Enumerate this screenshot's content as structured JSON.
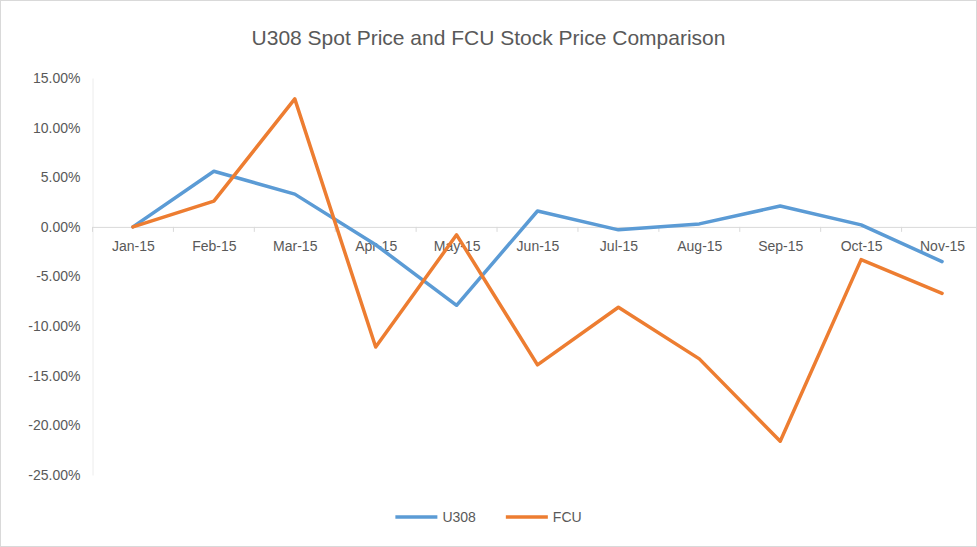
{
  "chart_data": {
    "type": "line",
    "title": "U308 Spot Price and FCU Stock Price Comparison",
    "categories": [
      "Jan-15",
      "Feb-15",
      "Mar-15",
      "Apr-15",
      "May-15",
      "Jun-15",
      "Jul-15",
      "Aug-15",
      "Sep-15",
      "Oct-15",
      "Nov-15"
    ],
    "series": [
      {
        "name": "U308",
        "color": "#5B9BD5",
        "values": [
          0,
          5.6,
          3.3,
          -1.8,
          -7.9,
          1.6,
          -0.3,
          0.3,
          2.1,
          0.2,
          -3.5
        ]
      },
      {
        "name": "FCU",
        "color": "#ED7D31",
        "values": [
          0,
          2.6,
          12.9,
          -12.1,
          -0.8,
          -13.9,
          -8.1,
          -13.3,
          -21.6,
          -3.3,
          -6.7
        ]
      }
    ],
    "ylim": [
      -25,
      15
    ],
    "yticks": [
      {
        "value": -25,
        "label": "-25.00%"
      },
      {
        "value": -20,
        "label": "-20.00%"
      },
      {
        "value": -15,
        "label": "-15.00%"
      },
      {
        "value": -10,
        "label": "-10.00%"
      },
      {
        "value": -5,
        "label": "-5.00%"
      },
      {
        "value": 0,
        "label": "0.00%"
      },
      {
        "value": 5,
        "label": "5.00%"
      },
      {
        "value": 10,
        "label": "10.00%"
      },
      {
        "value": 15,
        "label": "15.00%"
      }
    ],
    "grid": false,
    "legend": "bottom"
  }
}
